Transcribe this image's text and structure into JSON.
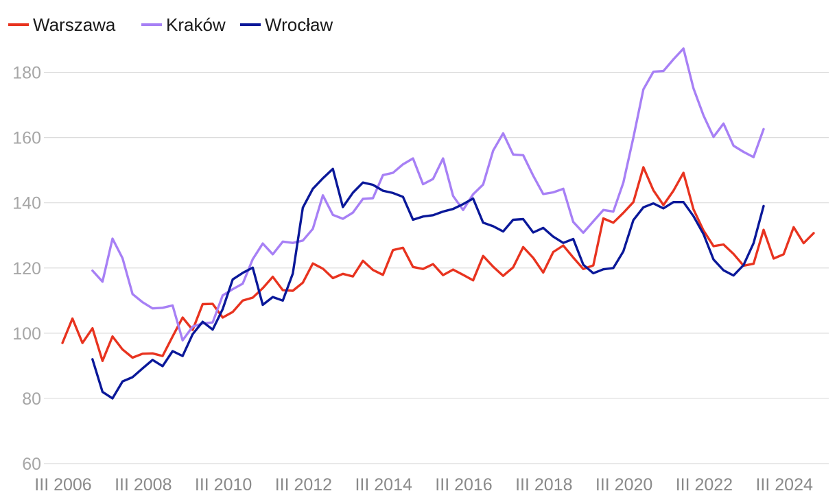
{
  "chart_data": {
    "type": "line",
    "title": "",
    "xlabel": "",
    "ylabel": "",
    "ylim": [
      60,
      190
    ],
    "yticks": [
      60,
      80,
      100,
      120,
      140,
      160,
      180
    ],
    "xticks": [
      "III 2006",
      "III 2008",
      "III 2010",
      "III 2012",
      "III 2014",
      "III 2016",
      "III 2018",
      "III 2020",
      "III 2022",
      "III 2024"
    ],
    "grid": true,
    "legend_position": "top-left",
    "x_start_label": "III 2006",
    "series": [
      {
        "name": "Warszawa",
        "color": "#e8331f",
        "values": [
          97,
          104.5,
          97,
          101.5,
          91.5,
          99,
          95,
          92.5,
          93.7,
          93.8,
          93,
          99,
          104.8,
          101,
          108.9,
          109,
          104.8,
          106.5,
          110,
          110.9,
          113.8,
          117.3,
          113.2,
          113,
          115.5,
          121.4,
          119.8,
          116.9,
          118.2,
          117.4,
          122.2,
          119.4,
          117.9,
          125.5,
          126.2,
          120.3,
          119.7,
          121.2,
          117.8,
          119.5,
          117.9,
          116.2,
          123.7,
          120.4,
          117.6,
          120.2,
          126.4,
          123.1,
          118.6,
          124.9,
          126.9,
          123.2,
          119.7,
          120.8,
          135.2,
          133.9,
          136.9,
          140.2,
          150.9,
          143.8,
          139.3,
          143.7,
          149.2,
          138,
          131.5,
          126.7,
          127.2,
          124.3,
          120.7,
          121.3,
          131.7,
          122.9,
          124.2,
          132.5,
          127.6,
          130.7
        ]
      },
      {
        "name": "Kraków",
        "color": "#a780f5",
        "values": [
          null,
          null,
          null,
          119.2,
          115.8,
          129,
          123,
          112,
          109.5,
          107.6,
          107.8,
          108.5,
          97.8,
          102,
          103,
          103.3,
          111.6,
          113.5,
          115.2,
          122.7,
          127.5,
          124.2,
          128.1,
          127.7,
          128.4,
          132,
          142.3,
          136.3,
          135.1,
          137,
          141.2,
          141.4,
          148.5,
          149.2,
          151.8,
          153.6,
          145.7,
          147.3,
          153.6,
          142.1,
          137.8,
          142.6,
          145.6,
          156,
          161.3,
          154.8,
          154.6,
          148.3,
          142.7,
          143.2,
          144.3,
          134.1,
          130.8,
          134.3,
          137.8,
          137.3,
          146.2,
          160,
          174.8,
          180.2,
          180.4,
          184,
          187.3,
          175.1,
          166.8,
          160.2,
          164.3,
          157.5,
          155.6,
          154,
          162.6,
          null,
          null,
          null,
          null,
          null
        ]
      },
      {
        "name": "Wrocław",
        "color": "#0a1899",
        "values": [
          null,
          null,
          null,
          92,
          82,
          80,
          85.2,
          86.5,
          89.2,
          91.8,
          89.9,
          94.5,
          93,
          99.7,
          103.5,
          101.1,
          107.4,
          116.5,
          118.5,
          120.1,
          108.7,
          111.1,
          110,
          118.3,
          138.5,
          144.3,
          147.5,
          150.4,
          138.7,
          143.1,
          146.2,
          145.5,
          143.7,
          143,
          141.8,
          134.8,
          135.8,
          136.2,
          137.3,
          138.1,
          139.6,
          141.3,
          133.9,
          132.8,
          131.2,
          134.8,
          135,
          130.9,
          132.3,
          129.6,
          127.7,
          128.9,
          121,
          118.4,
          119.6,
          120,
          125.1,
          134.7,
          138.6,
          139.8,
          138.3,
          140.2,
          140.2,
          135.9,
          130.4,
          122.6,
          119.3,
          117.7,
          120.9,
          127.6,
          139,
          null,
          null,
          null,
          null,
          null
        ]
      }
    ]
  }
}
